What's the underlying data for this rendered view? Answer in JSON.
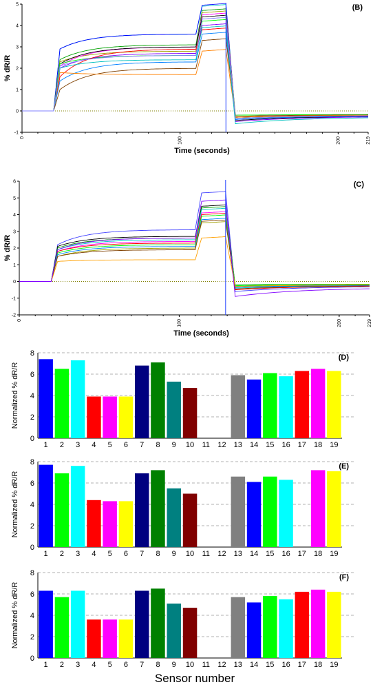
{
  "chart_data": [
    {
      "type": "line",
      "panel_label": "(B)",
      "xlabel": "Time (seconds)",
      "ylabel": "% dR/R",
      "xlim": [
        0,
        219
      ],
      "ylim": [
        -1,
        5
      ],
      "x_ticks": [
        "0",
        "100",
        "200",
        "219"
      ],
      "x_tick_values": [
        0,
        100,
        200,
        219
      ],
      "y_ticks": [
        "-1",
        "0",
        "1",
        "2",
        "3",
        "4",
        "5"
      ],
      "y_tick_values": [
        -1,
        0,
        1,
        2,
        3,
        4,
        5
      ],
      "baseline": 0,
      "marker_x": 129,
      "series": [
        {
          "color": "#00c8c8",
          "plateau1": [
            2.9,
            3.6
          ],
          "plateau2": 4.9,
          "recovery": -0.3
        },
        {
          "color": "#0000ff",
          "plateau1": [
            2.9,
            3.6
          ],
          "plateau2": 4.95,
          "recovery": -0.4
        },
        {
          "color": "#00a000",
          "plateau1": [
            2.4,
            3.1
          ],
          "plateau2": 4.7,
          "recovery": -0.3
        },
        {
          "color": "#a0a000",
          "plateau1": [
            2.3,
            2.8
          ],
          "plateau2": 4.6,
          "recovery": -0.35
        },
        {
          "color": "#ff00ff",
          "plateau1": [
            2.1,
            3.0
          ],
          "plateau2": 4.5,
          "recovery": -0.2
        },
        {
          "color": "#000000",
          "plateau1": [
            2.2,
            3.0
          ],
          "plateau2": 4.4,
          "recovery": -0.45
        },
        {
          "color": "#00ff00",
          "plateau1": [
            2.2,
            2.6
          ],
          "plateau2": 4.2,
          "recovery": -0.2
        },
        {
          "color": "#8000ff",
          "plateau1": [
            2.0,
            2.7
          ],
          "plateau2": 4.0,
          "recovery": -0.5
        },
        {
          "color": "#ff0000",
          "plateau1": [
            1.6,
            2.9
          ],
          "plateau2": 3.8,
          "recovery": -0.3
        },
        {
          "color": "#0080ff",
          "plateau1": [
            1.4,
            2.3
          ],
          "plateau2": 3.6,
          "recovery": -0.4
        },
        {
          "color": "#804000",
          "plateau1": [
            1.0,
            2.0
          ],
          "plateau2": 3.3,
          "recovery": -0.25
        },
        {
          "color": "#ff8000",
          "plateau1": [
            1.8,
            1.7
          ],
          "plateau2": 2.8,
          "recovery": -0.3
        },
        {
          "color": "#00c0c0",
          "plateau1": [
            2.0,
            2.4
          ],
          "plateau2": 3.9,
          "recovery": -0.6
        },
        {
          "color": "#8080ff",
          "plateau1": [
            2.1,
            2.6
          ],
          "plateau2": 4.3,
          "recovery": -0.35
        }
      ]
    },
    {
      "type": "line",
      "panel_label": "(C)",
      "xlabel": "Time (seconds)",
      "ylabel": "% dR/R",
      "xlim": [
        0,
        219
      ],
      "ylim": [
        -2,
        6
      ],
      "x_ticks": [
        "0",
        "100",
        "200",
        "219"
      ],
      "x_tick_values": [
        0,
        100,
        200,
        219
      ],
      "y_ticks": [
        "-2",
        "-1",
        "0",
        "1",
        "2",
        "3",
        "4",
        "5",
        "6"
      ],
      "y_tick_values": [
        -2,
        -1,
        0,
        1,
        2,
        3,
        4,
        5,
        6
      ],
      "baseline": 0,
      "marker_x": 129,
      "series": [
        {
          "color": "#4040ff",
          "plateau1": [
            2.2,
            3.1
          ],
          "plateau2": 5.3,
          "recovery": -0.6
        },
        {
          "color": "#000000",
          "plateau1": [
            2.1,
            2.7
          ],
          "plateau2": 4.5,
          "recovery": -0.3
        },
        {
          "color": "#00a000",
          "plateau1": [
            2.0,
            2.6
          ],
          "plateau2": 4.4,
          "recovery": -0.2
        },
        {
          "color": "#00c8c8",
          "plateau1": [
            1.9,
            2.5
          ],
          "plateau2": 4.3,
          "recovery": -0.4
        },
        {
          "color": "#ff00ff",
          "plateau1": [
            1.8,
            2.4
          ],
          "plateau2": 4.1,
          "recovery": -0.3
        },
        {
          "color": "#ff0000",
          "plateau1": [
            1.8,
            2.3
          ],
          "plateau2": 4.0,
          "recovery": -0.5
        },
        {
          "color": "#00ff00",
          "plateau1": [
            1.7,
            2.2
          ],
          "plateau2": 3.9,
          "recovery": -0.25
        },
        {
          "color": "#0080ff",
          "plateau1": [
            1.6,
            2.1
          ],
          "plateau2": 3.7,
          "recovery": -0.35
        },
        {
          "color": "#a0a000",
          "plateau1": [
            1.5,
            2.0
          ],
          "plateau2": 3.5,
          "recovery": -0.3
        },
        {
          "color": "#804000",
          "plateau1": [
            1.5,
            1.9
          ],
          "plateau2": 3.6,
          "recovery": -0.45
        },
        {
          "color": "#ffa000",
          "plateau1": [
            1.2,
            1.3
          ],
          "plateau2": 2.6,
          "recovery": -0.3
        },
        {
          "color": "#8000ff",
          "plateau1": [
            1.9,
            2.6
          ],
          "plateau2": 4.8,
          "recovery": -0.9
        }
      ]
    },
    {
      "type": "bar",
      "panel_label": "(D)",
      "ylabel": "Normalized % dR/R",
      "ylim": [
        0,
        8
      ],
      "y_ticks": [
        "0",
        "2",
        "4",
        "6",
        "8"
      ],
      "categories": [
        "1",
        "2",
        "3",
        "4",
        "5",
        "6",
        "7",
        "8",
        "9",
        "10",
        "11",
        "12",
        "13",
        "14",
        "15",
        "16",
        "17",
        "18",
        "19"
      ],
      "values": [
        7.4,
        6.5,
        7.3,
        3.9,
        3.9,
        3.9,
        6.8,
        7.1,
        5.3,
        4.7,
        0,
        0,
        5.9,
        5.5,
        6.1,
        5.8,
        6.3,
        6.5,
        6.3
      ]
    },
    {
      "type": "bar",
      "panel_label": "(E)",
      "ylabel": "Normalized % dR/R",
      "ylim": [
        0,
        8
      ],
      "y_ticks": [
        "0",
        "2",
        "4",
        "6",
        "8"
      ],
      "categories": [
        "1",
        "2",
        "3",
        "4",
        "5",
        "6",
        "7",
        "8",
        "9",
        "10",
        "11",
        "12",
        "13",
        "14",
        "15",
        "16",
        "17",
        "18",
        "19"
      ],
      "values": [
        7.7,
        6.9,
        7.6,
        4.4,
        4.3,
        4.3,
        6.9,
        7.2,
        5.5,
        5.0,
        0,
        0,
        6.6,
        6.1,
        6.6,
        6.3,
        0,
        7.2,
        7.1
      ]
    },
    {
      "type": "bar",
      "panel_label": "(F)",
      "ylabel": "Normalized % dR/R",
      "ylim": [
        0,
        8
      ],
      "y_ticks": [
        "0",
        "2",
        "4",
        "6",
        "8"
      ],
      "categories": [
        "1",
        "2",
        "3",
        "4",
        "5",
        "6",
        "7",
        "8",
        "9",
        "10",
        "11",
        "12",
        "13",
        "14",
        "15",
        "16",
        "17",
        "18",
        "19"
      ],
      "values": [
        6.3,
        5.7,
        6.3,
        3.6,
        3.6,
        3.6,
        6.3,
        6.5,
        5.1,
        4.7,
        0,
        0,
        5.7,
        5.2,
        5.8,
        5.5,
        6.2,
        6.4,
        6.2
      ]
    }
  ],
  "bar_colors": [
    "#0000ff",
    "#00ff00",
    "#00ffff",
    "#ff0000",
    "#ff00ff",
    "#ffff00",
    "#000080",
    "#008000",
    "#008080",
    "#800000",
    "#cccccc",
    "#cccccc",
    "#808080",
    "#0000ff",
    "#00ff00",
    "#00ffff",
    "#ff0000",
    "#ff00ff",
    "#ffff00"
  ],
  "shared_xlabel": "Sensor number"
}
